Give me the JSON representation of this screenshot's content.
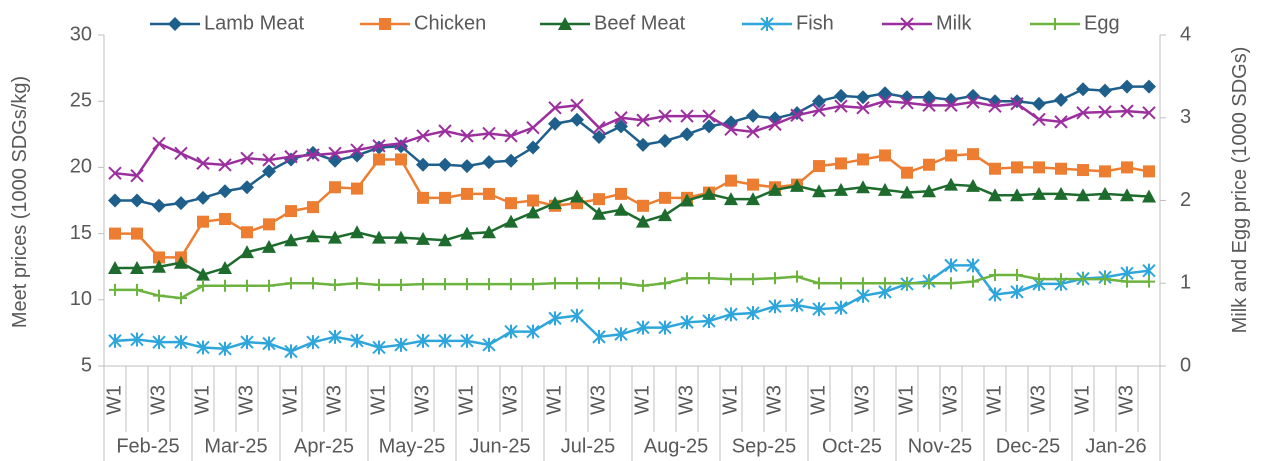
{
  "chart_data": {
    "type": "line",
    "y_label": "Meet prices (1000 SDGs/kg)",
    "y2_label": "Milk and Egg price (1000 SDGs)",
    "categories": [
      "W1",
      null,
      "W3",
      null,
      "W1",
      null,
      "W3",
      null,
      "W1",
      null,
      "W3",
      null,
      "W1",
      null,
      "W3",
      null,
      "W1",
      null,
      "W3",
      null,
      "W1",
      null,
      "W3",
      null,
      "W1",
      null,
      "W3",
      null,
      "W1",
      null,
      "W3",
      null,
      "W1",
      null,
      "W3",
      null,
      "W1",
      null,
      "W3",
      null,
      "W1",
      null,
      "W3",
      null,
      "W1",
      null,
      "W3",
      null
    ],
    "months": [
      "Feb-25",
      "Mar-25",
      "Apr-25",
      "May-25",
      "Jun-25",
      "Jul-25",
      "Aug-25",
      "Sep-25",
      "Oct-25",
      "Nov-25",
      "Dec-25",
      "Jan-26"
    ],
    "ylim": [
      5,
      30
    ],
    "yticks": [
      5,
      10,
      15,
      20,
      25,
      30
    ],
    "y2lim": [
      0,
      4
    ],
    "y2ticks": [
      0,
      1,
      2,
      3,
      4
    ],
    "legend": "top",
    "series": [
      {
        "name": "Lamb Meat",
        "color": "#1f5f8b",
        "marker": "diamond",
        "values": [
          17.5,
          17.5,
          17.1,
          17.3,
          17.7,
          18.2,
          18.5,
          19.7,
          20.6,
          21.1,
          20.5,
          20.9,
          21.5,
          21.6,
          20.2,
          20.2,
          20.1,
          20.4,
          20.5,
          21.5,
          23.3,
          23.6,
          22.3,
          23.1,
          21.7,
          22,
          22.5,
          23.1,
          23.4,
          23.9,
          23.7,
          24.1,
          25,
          25.4,
          25.3,
          25.6,
          25.3,
          25.3,
          25.1,
          25.4,
          25,
          25,
          24.8,
          25.1,
          25.9,
          25.8,
          26.1,
          26.1
        ]
      },
      {
        "name": "Chicken",
        "color": "#ed7d31",
        "marker": "square",
        "values": [
          15,
          15,
          13.2,
          13.2,
          15.9,
          16.1,
          15.1,
          15.7,
          16.7,
          17,
          18.5,
          18.4,
          20.6,
          20.6,
          17.7,
          17.7,
          18,
          18,
          17.3,
          17.5,
          17.1,
          17.3,
          17.6,
          18,
          17.1,
          17.7,
          17.7,
          18.1,
          19,
          18.7,
          18.5,
          18.7,
          20.1,
          20.3,
          20.6,
          20.9,
          19.6,
          20.2,
          20.9,
          21,
          19.9,
          20,
          20,
          19.9,
          19.8,
          19.7,
          20,
          19.7
        ]
      },
      {
        "name": "Beef Meat",
        "color": "#1e6b2e",
        "marker": "triangle",
        "values": [
          12.4,
          12.4,
          12.5,
          12.8,
          11.9,
          12.4,
          13.6,
          14,
          14.5,
          14.8,
          14.7,
          15.1,
          14.7,
          14.7,
          14.6,
          14.5,
          15,
          15.1,
          15.9,
          16.6,
          17.3,
          17.8,
          16.5,
          16.8,
          15.9,
          16.4,
          17.5,
          18,
          17.6,
          17.6,
          18.3,
          18.6,
          18.2,
          18.3,
          18.5,
          18.3,
          18.1,
          18.2,
          18.7,
          18.6,
          17.9,
          17.9,
          18,
          18,
          17.9,
          18,
          17.9,
          17.8
        ]
      },
      {
        "name": "Fish",
        "color": "#2ea6db",
        "marker": "asterisk",
        "values": [
          6.9,
          7,
          6.8,
          6.8,
          6.4,
          6.3,
          6.8,
          6.7,
          6.1,
          6.8,
          7.2,
          6.9,
          6.4,
          6.6,
          6.9,
          6.9,
          6.9,
          6.6,
          7.6,
          7.6,
          8.6,
          8.8,
          7.2,
          7.4,
          7.9,
          7.9,
          8.3,
          8.4,
          8.9,
          9,
          9.5,
          9.6,
          9.3,
          9.4,
          10.3,
          10.6,
          11.2,
          11.4,
          12.6,
          12.6,
          10.4,
          10.6,
          11.2,
          11.2,
          11.6,
          11.7,
          12,
          12.2
        ]
      },
      {
        "name": "Milk",
        "color": "#9b2f9e",
        "marker": "x",
        "axis": "y2",
        "values": [
          2.33,
          2.3,
          2.69,
          2.57,
          2.45,
          2.43,
          2.51,
          2.49,
          2.53,
          2.55,
          2.57,
          2.61,
          2.66,
          2.69,
          2.78,
          2.84,
          2.78,
          2.81,
          2.78,
          2.88,
          3.12,
          3.15,
          2.88,
          3,
          2.97,
          3.02,
          3.02,
          3.02,
          2.86,
          2.83,
          2.92,
          3.03,
          3.09,
          3.14,
          3.12,
          3.2,
          3.18,
          3.15,
          3.15,
          3.19,
          3.14,
          3.17,
          2.98,
          2.95,
          3.06,
          3.07,
          3.08,
          3.06
        ]
      },
      {
        "name": "Egg",
        "color": "#6cb33f",
        "marker": "plus",
        "axis": "y2",
        "values": [
          0.92,
          0.92,
          0.85,
          0.82,
          0.97,
          0.97,
          0.97,
          0.97,
          1,
          1,
          0.98,
          1,
          0.98,
          0.98,
          0.99,
          0.99,
          0.99,
          0.99,
          0.99,
          0.99,
          1,
          1,
          1,
          1,
          0.97,
          1,
          1.06,
          1.06,
          1.05,
          1.05,
          1.06,
          1.08,
          1,
          1,
          1,
          1,
          1,
          1,
          1,
          1.02,
          1.1,
          1.1,
          1.05,
          1.05,
          1.05,
          1.05,
          1.02,
          1.02
        ]
      }
    ]
  }
}
